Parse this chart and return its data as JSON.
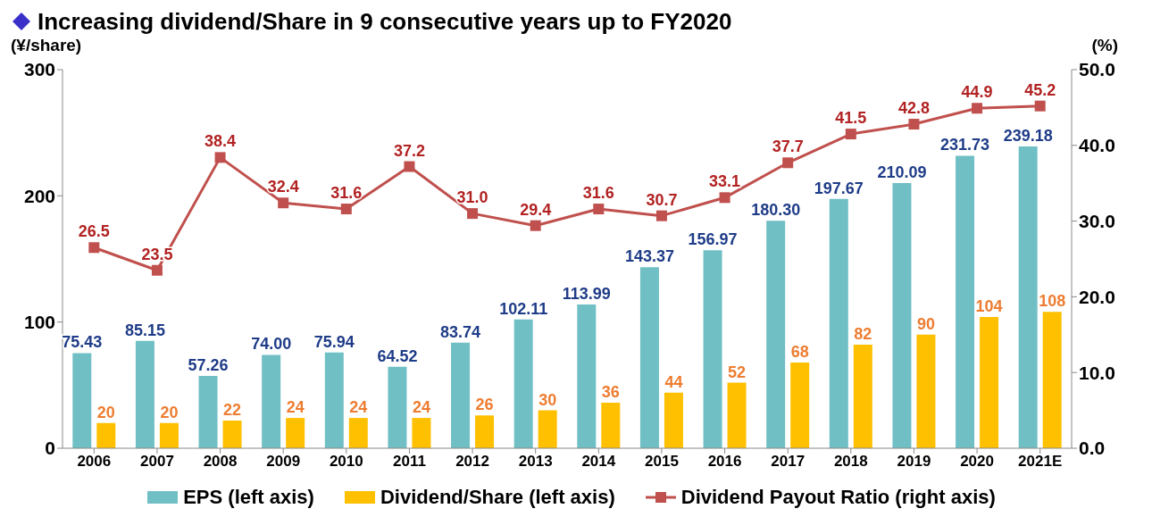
{
  "chart_data": {
    "type": "bar",
    "title": "Increasing dividend/Share in 9 consecutive years up to FY2020",
    "ylabel": "(¥/share)",
    "y2label": "(%)",
    "categories": [
      "2006",
      "2007",
      "2008",
      "2009",
      "2010",
      "2011",
      "2012",
      "2013",
      "2014",
      "2015",
      "2016",
      "2017",
      "2018",
      "2019",
      "2020",
      "2021E"
    ],
    "series": [
      {
        "name": "EPS (left axis)",
        "color": "#70bfc5",
        "values": [
          75.43,
          85.15,
          57.26,
          74.0,
          75.94,
          64.52,
          83.74,
          102.11,
          113.99,
          143.37,
          156.97,
          180.3,
          197.67,
          210.09,
          231.73,
          239.18
        ],
        "value_labels": [
          "75.43",
          "85.15",
          "57.26",
          "74.00",
          "75.94",
          "64.52",
          "83.74",
          "102.11",
          "113.99",
          "143.37",
          "156.97",
          "180.30",
          "197.67",
          "210.09",
          "231.73",
          "239.18"
        ]
      },
      {
        "name": "Dividend/Share (left axis)",
        "color": "#ffc000",
        "values": [
          20,
          20,
          22,
          24,
          24,
          24,
          26,
          30,
          36,
          44,
          52,
          68,
          82,
          90,
          104,
          108
        ]
      },
      {
        "name": "Dividend Payout Ratio (right axis)",
        "type": "line",
        "axis": "y2",
        "color": "#c0504d",
        "marker": "square",
        "values": [
          26.5,
          23.5,
          38.4,
          32.4,
          31.6,
          37.2,
          31.0,
          29.4,
          31.6,
          30.7,
          33.1,
          37.7,
          41.5,
          42.8,
          44.9,
          45.2
        ],
        "value_labels": [
          "26.5",
          "23.5",
          "38.4",
          "32.4",
          "31.6",
          "37.2",
          "31.0",
          "29.4",
          "31.6",
          "30.7",
          "33.1",
          "37.7",
          "41.5",
          "42.8",
          "44.9",
          "45.2"
        ]
      }
    ],
    "ylim": [
      0,
      300
    ],
    "yticks": [
      0,
      100,
      200,
      300
    ],
    "y2lim": [
      0,
      50
    ],
    "y2ticks": [
      {
        "value": 0,
        "label": "0.0"
      },
      {
        "value": 10,
        "label": "10.0"
      },
      {
        "value": 20,
        "label": "20.0"
      },
      {
        "value": 30,
        "label": "30.0"
      },
      {
        "value": 40,
        "label": "40.0"
      },
      {
        "value": 50,
        "label": "50.0"
      }
    ],
    "data_labels": true,
    "grid": false,
    "legend": "bottom"
  }
}
